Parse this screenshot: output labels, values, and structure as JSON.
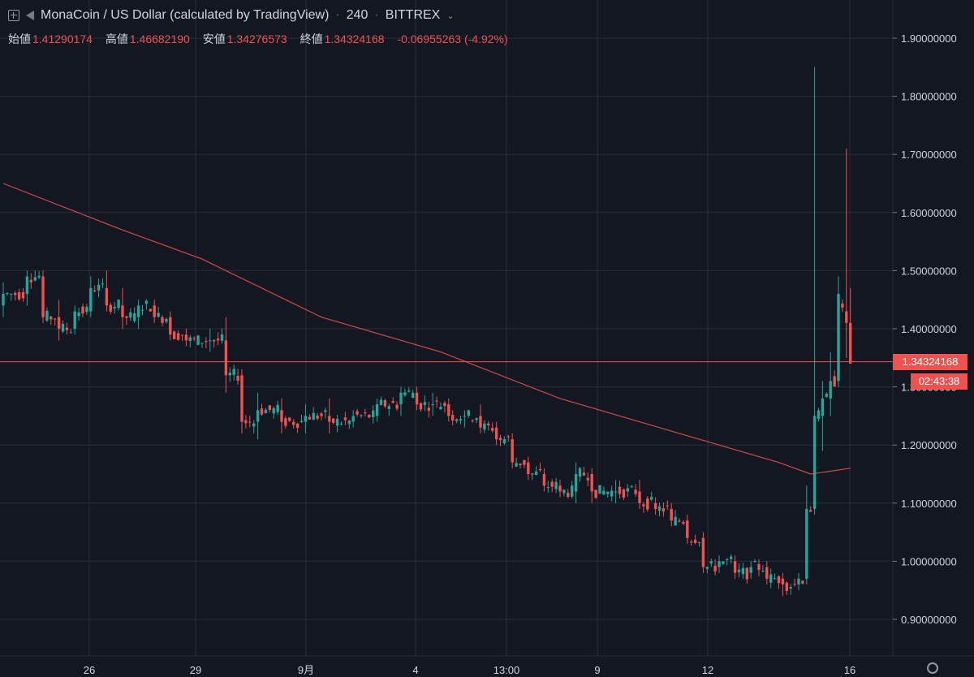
{
  "header": {
    "title": "MonaCoin / US Dollar (calculated by TradingView)",
    "interval": "240",
    "exchange": "BITTREX"
  },
  "ohlc": {
    "open_label": "始値",
    "open": "1.41290174",
    "high_label": "高値",
    "high": "1.46682190",
    "low_label": "安値",
    "low": "1.34276573",
    "close_label": "終値",
    "close": "1.34324168",
    "change": "-0.06955263 (-4.92%)"
  },
  "price_tag": {
    "price": "1.34324168",
    "countdown": "02:43:38"
  },
  "colors": {
    "background": "#131722",
    "up": "#26a69a",
    "down": "#ef5350",
    "ma": "#d04a43",
    "grid": "#2a2e39",
    "text": "#d1d4dc"
  },
  "chart_data": {
    "type": "candlestick",
    "ylim": [
      0.84,
      1.95
    ],
    "yticks": [
      "1.90000000",
      "1.80000000",
      "1.70000000",
      "1.60000000",
      "1.50000000",
      "1.40000000",
      "1.30000000",
      "1.20000000",
      "1.10000000",
      "1.00000000",
      "0.90000000"
    ],
    "xticks": [
      "26",
      "29",
      "9月",
      "4",
      "13:00",
      "9",
      "12",
      "16"
    ],
    "last_price": 1.34324168,
    "anchors": [
      [
        0,
        1.44,
        1.48,
        1.42,
        1.46
      ],
      [
        6,
        1.46,
        1.5,
        1.44,
        1.49
      ],
      [
        10,
        1.49,
        1.5,
        1.41,
        1.42
      ],
      [
        14,
        1.42,
        1.45,
        1.38,
        1.4
      ],
      [
        18,
        1.4,
        1.44,
        1.39,
        1.43
      ],
      [
        22,
        1.43,
        1.49,
        1.42,
        1.47
      ],
      [
        26,
        1.47,
        1.5,
        1.43,
        1.44
      ],
      [
        30,
        1.44,
        1.47,
        1.4,
        1.42
      ],
      [
        34,
        1.42,
        1.45,
        1.4,
        1.44
      ],
      [
        38,
        1.44,
        1.45,
        1.41,
        1.42
      ],
      [
        42,
        1.42,
        1.43,
        1.38,
        1.39
      ],
      [
        46,
        1.39,
        1.4,
        1.37,
        1.38
      ],
      [
        52,
        1.38,
        1.4,
        1.36,
        1.38
      ],
      [
        56,
        1.38,
        1.42,
        1.29,
        1.32
      ],
      [
        60,
        1.32,
        1.33,
        1.22,
        1.24
      ],
      [
        64,
        1.24,
        1.29,
        1.21,
        1.26
      ],
      [
        70,
        1.26,
        1.28,
        1.22,
        1.24
      ],
      [
        76,
        1.24,
        1.27,
        1.22,
        1.25
      ],
      [
        82,
        1.25,
        1.28,
        1.22,
        1.24
      ],
      [
        88,
        1.24,
        1.26,
        1.23,
        1.25
      ],
      [
        94,
        1.25,
        1.28,
        1.24,
        1.27
      ],
      [
        100,
        1.27,
        1.3,
        1.25,
        1.29
      ],
      [
        104,
        1.29,
        1.3,
        1.26,
        1.27
      ],
      [
        108,
        1.27,
        1.29,
        1.25,
        1.27
      ],
      [
        112,
        1.27,
        1.28,
        1.24,
        1.25
      ],
      [
        116,
        1.25,
        1.26,
        1.23,
        1.25
      ],
      [
        120,
        1.25,
        1.27,
        1.22,
        1.23
      ],
      [
        124,
        1.23,
        1.24,
        1.2,
        1.21
      ],
      [
        128,
        1.21,
        1.22,
        1.16,
        1.17
      ],
      [
        132,
        1.17,
        1.18,
        1.14,
        1.15
      ],
      [
        136,
        1.15,
        1.16,
        1.12,
        1.13
      ],
      [
        140,
        1.13,
        1.14,
        1.11,
        1.12
      ],
      [
        144,
        1.12,
        1.17,
        1.1,
        1.15
      ],
      [
        148,
        1.15,
        1.16,
        1.1,
        1.12
      ],
      [
        154,
        1.12,
        1.14,
        1.1,
        1.12
      ],
      [
        160,
        1.12,
        1.14,
        1.09,
        1.1
      ],
      [
        164,
        1.1,
        1.11,
        1.08,
        1.09
      ],
      [
        168,
        1.09,
        1.1,
        1.06,
        1.07
      ],
      [
        172,
        1.07,
        1.08,
        1.03,
        1.04
      ],
      [
        176,
        1.04,
        1.05,
        0.98,
        0.99
      ],
      [
        180,
        0.99,
        1.01,
        0.98,
        1.0
      ],
      [
        184,
        1.0,
        1.01,
        0.97,
        0.98
      ],
      [
        188,
        0.98,
        1.0,
        0.97,
        0.99
      ],
      [
        192,
        0.99,
        1.0,
        0.96,
        0.97
      ],
      [
        196,
        0.97,
        0.98,
        0.94,
        0.96
      ],
      [
        200,
        0.96,
        0.98,
        0.95,
        0.97
      ],
      [
        202,
        0.97,
        1.13,
        0.96,
        1.09
      ],
      [
        204,
        1.09,
        1.85,
        1.08,
        1.25
      ],
      [
        206,
        1.25,
        1.31,
        1.19,
        1.28
      ],
      [
        208,
        1.28,
        1.36,
        1.25,
        1.31
      ],
      [
        210,
        1.31,
        1.49,
        1.3,
        1.46
      ],
      [
        212,
        1.43,
        1.71,
        1.35,
        1.41
      ],
      [
        213,
        1.41,
        1.47,
        1.34,
        1.34
      ]
    ],
    "ma_curve": [
      [
        0,
        1.65
      ],
      [
        30,
        1.57
      ],
      [
        50,
        1.52
      ],
      [
        80,
        1.42
      ],
      [
        110,
        1.36
      ],
      [
        140,
        1.28
      ],
      [
        170,
        1.22
      ],
      [
        195,
        1.17
      ],
      [
        203,
        1.15
      ],
      [
        213,
        1.16
      ]
    ]
  }
}
